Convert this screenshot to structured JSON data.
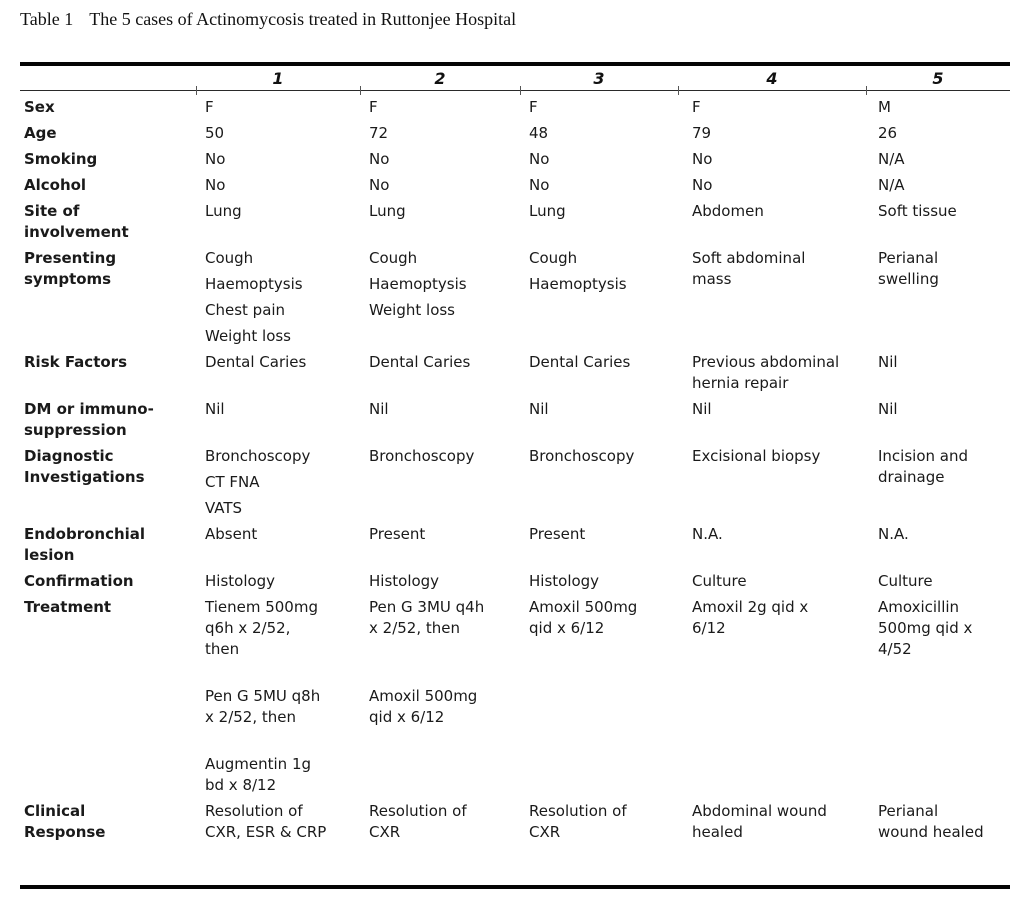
{
  "title": {
    "label": "Table 1",
    "text": "The 5 cases of Actinomycosis treated in Ruttonjee Hospital"
  },
  "table": {
    "column_headers": [
      "1",
      "2",
      "3",
      "4",
      "5"
    ],
    "rows": [
      {
        "label": "Sex",
        "cells": [
          [
            "F"
          ],
          [
            "F"
          ],
          [
            "F"
          ],
          [
            "F"
          ],
          [
            "M"
          ]
        ]
      },
      {
        "label": "Age",
        "cells": [
          [
            "50"
          ],
          [
            "72"
          ],
          [
            "48"
          ],
          [
            "79"
          ],
          [
            "26"
          ]
        ]
      },
      {
        "label": "Smoking",
        "cells": [
          [
            "No"
          ],
          [
            "No"
          ],
          [
            "No"
          ],
          [
            "No"
          ],
          [
            "N/A"
          ]
        ]
      },
      {
        "label": "Alcohol",
        "cells": [
          [
            "No"
          ],
          [
            "No"
          ],
          [
            "No"
          ],
          [
            "No"
          ],
          [
            "N/A"
          ]
        ]
      },
      {
        "label": "Site of\ninvolvement",
        "cells": [
          [
            "Lung"
          ],
          [
            "Lung"
          ],
          [
            "Lung"
          ],
          [
            "Abdomen"
          ],
          [
            "Soft tissue"
          ]
        ]
      },
      {
        "label": "Presenting\nsymptoms",
        "cells": [
          [
            "Cough",
            "Haemoptysis",
            "Chest pain",
            "Weight loss"
          ],
          [
            "Cough",
            "Haemoptysis",
            "Weight loss"
          ],
          [
            "Cough",
            "Haemoptysis"
          ],
          [
            "Soft abdominal\nmass"
          ],
          [
            "Perianal\nswelling"
          ]
        ]
      },
      {
        "label": "Risk Factors",
        "cells": [
          [
            "Dental Caries"
          ],
          [
            "Dental Caries"
          ],
          [
            "Dental Caries"
          ],
          [
            "Previous abdominal\nhernia repair"
          ],
          [
            "Nil"
          ]
        ]
      },
      {
        "label": "DM or immuno-\nsuppression",
        "cells": [
          [
            "Nil"
          ],
          [
            "Nil"
          ],
          [
            "Nil"
          ],
          [
            "Nil"
          ],
          [
            "Nil"
          ]
        ]
      },
      {
        "label": "Diagnostic\nInvestigations",
        "cells": [
          [
            "Bronchoscopy",
            "CT FNA",
            "VATS"
          ],
          [
            "Bronchoscopy"
          ],
          [
            "Bronchoscopy"
          ],
          [
            "Excisional biopsy"
          ],
          [
            "Incision and\ndrainage"
          ]
        ]
      },
      {
        "label": "Endobronchial\nlesion",
        "cells": [
          [
            "Absent"
          ],
          [
            "Present"
          ],
          [
            "Present"
          ],
          [
            "N.A."
          ],
          [
            "N.A."
          ]
        ]
      },
      {
        "label": "Confirmation",
        "cells": [
          [
            "Histology"
          ],
          [
            "Histology"
          ],
          [
            "Histology"
          ],
          [
            "Culture"
          ],
          [
            "Culture"
          ]
        ]
      },
      {
        "label": "Treatment",
        "cells": [
          [
            "Tienem 500mg\nq6h x 2/52,\nthen",
            "",
            "Pen G 5MU q8h\nx 2/52, then",
            "",
            "Augmentin 1g\nbd x 8/12"
          ],
          [
            "Pen G 3MU q4h\nx 2/52, then",
            "",
            "",
            "Amoxil 500mg\nqid x 6/12"
          ],
          [
            "Amoxil 500mg\nqid x 6/12"
          ],
          [
            "Amoxil 2g qid x\n6/12"
          ],
          [
            "Amoxicillin\n500mg qid x\n4/52"
          ]
        ]
      },
      {
        "label": "Clinical\nResponse",
        "cells": [
          [
            "Resolution of\nCXR, ESR & CRP"
          ],
          [
            "Resolution of\nCXR"
          ],
          [
            "Resolution of\nCXR"
          ],
          [
            "Abdominal wound\nhealed"
          ],
          [
            "Perianal\nwound healed"
          ]
        ]
      }
    ]
  }
}
